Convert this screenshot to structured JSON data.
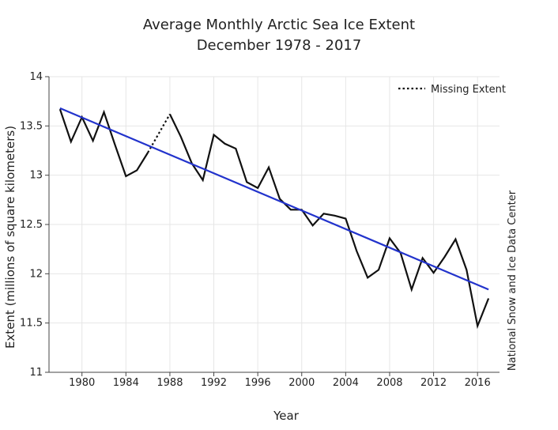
{
  "chart_data": {
    "type": "line",
    "title": "Average Monthly Arctic Sea Ice Extent",
    "subtitle": "December 1978 - 2017",
    "xlabel": "Year",
    "ylabel": "Extent (millions of square kilometers)",
    "credit": "National Snow and Ice Data Center",
    "xlim": [
      1977,
      2018
    ],
    "ylim": [
      11,
      14
    ],
    "xticks": [
      1980,
      1984,
      1988,
      1992,
      1996,
      2000,
      2004,
      2008,
      2012,
      2016
    ],
    "yticks": [
      11,
      11.5,
      12,
      12.5,
      13,
      13.5,
      14
    ],
    "grid": true,
    "legend": {
      "position": "top-right",
      "entries": [
        {
          "label": "Missing Extent",
          "style": "dotted"
        }
      ]
    },
    "series": [
      {
        "name": "Extent",
        "color": "#111111",
        "segments": [
          {
            "x": [
              1978,
              1979,
              1980,
              1981,
              1982,
              1983,
              1984,
              1985,
              1986
            ],
            "y": [
              13.67,
              13.34,
              13.59,
              13.35,
              13.64,
              13.31,
              12.99,
              13.05,
              13.23
            ]
          },
          {
            "x": [
              1988,
              1989,
              1990,
              1991,
              1992,
              1993,
              1994,
              1995,
              1996,
              1997,
              1998,
              1999,
              2000,
              2001,
              2002,
              2003,
              2004,
              2005,
              2006,
              2007,
              2008,
              2009,
              2010,
              2011,
              2012,
              2013,
              2014,
              2015,
              2016,
              2017
            ],
            "y": [
              13.62,
              13.39,
              13.12,
              12.95,
              13.41,
              13.32,
              13.27,
              12.93,
              12.87,
              13.08,
              12.76,
              12.65,
              12.65,
              12.49,
              12.61,
              12.59,
              12.56,
              12.23,
              11.96,
              12.04,
              12.36,
              12.21,
              11.84,
              12.16,
              12.01,
              12.17,
              12.35,
              12.04,
              11.47,
              11.75
            ]
          }
        ]
      },
      {
        "name": "Missing Extent",
        "color": "#111111",
        "style": "dotted",
        "x": [
          1986,
          1988
        ],
        "y": [
          13.23,
          13.62
        ]
      },
      {
        "name": "Trend",
        "color": "#2233cc",
        "x": [
          1978,
          2017
        ],
        "y": [
          13.68,
          11.84
        ]
      }
    ]
  }
}
